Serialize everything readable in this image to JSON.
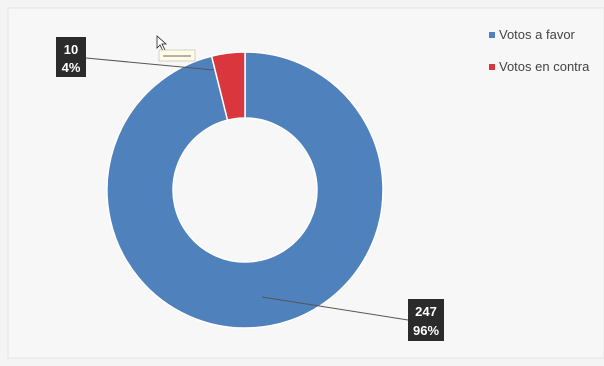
{
  "chart_data": {
    "type": "donut",
    "title": "",
    "series": [
      {
        "name": "Votos a favor",
        "value": 247,
        "percent": "96%",
        "color": "#4f81bd"
      },
      {
        "name": "Votos en contra",
        "value": 10,
        "percent": "4%",
        "color": "#d9363e"
      }
    ],
    "data_labels": [
      {
        "value": "247",
        "percent": "96%"
      },
      {
        "value": "10",
        "percent": "4%"
      }
    ],
    "legend_position": "top-right",
    "grid": false
  },
  "colors": {
    "background": "#f4f4f4",
    "callout_bg": "#2b2b2b",
    "leader_line": "#555555"
  }
}
